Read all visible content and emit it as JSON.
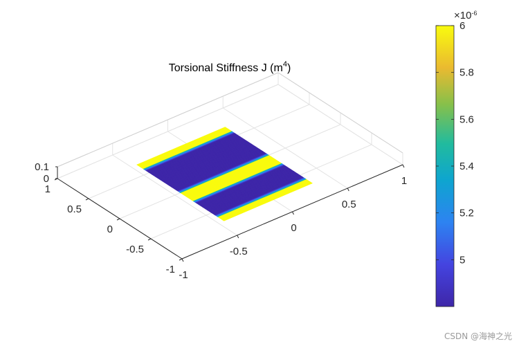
{
  "chart_data": {
    "type": "surface",
    "title": "Torsional Stiffness J (m",
    "title_sup": "4",
    "title_suffix": ")",
    "x_ticks": [
      "-1",
      "-0.5",
      "0",
      "0.5",
      "1"
    ],
    "y_ticks": [
      "-1",
      "-0.5",
      "0",
      "0.5",
      "1"
    ],
    "z_ticks": [
      "0",
      "0.1"
    ],
    "xlim": [
      -1,
      1
    ],
    "ylim": [
      -1,
      1
    ],
    "zlim": [
      0,
      0.1
    ],
    "grid": true,
    "colormap": "parula",
    "colorbar": {
      "ticks": [
        "5",
        "5.2",
        "5.4",
        "5.6",
        "5.8",
        "6"
      ],
      "exponent_base": "×10",
      "exponent_power": "-6",
      "clim": [
        4.8e-06,
        6e-06
      ]
    },
    "surface": {
      "x_range": [
        -0.45,
        0.35
      ],
      "y_range": [
        -0.7,
        0.7
      ],
      "z": 0,
      "base_value": 4.8e-06,
      "high_bands": [
        {
          "y_from": 0.6,
          "y_to": 0.7,
          "value": 6e-06
        },
        {
          "y_from": -0.2,
          "y_to": 0.0,
          "value": 6e-06
        },
        {
          "y_from": -0.7,
          "y_to": -0.6,
          "value": 6e-06
        }
      ]
    }
  },
  "watermark": "CSDN @海神之光"
}
